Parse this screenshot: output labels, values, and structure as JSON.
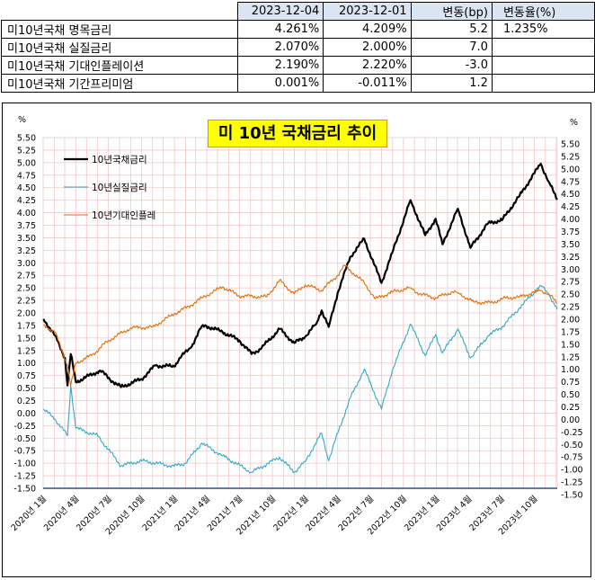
{
  "table": {
    "headers": [
      "2023-12-04",
      "2023-12-01",
      "변동(bp)",
      "변동율(%)"
    ],
    "rows": [
      {
        "label": "미10년국채 명목금리",
        "v1": "4.261%",
        "v2": "4.209%",
        "chg": "5.2",
        "pct": "1.235%"
      },
      {
        "label": "미10년국채 실질금리",
        "v1": "2.070%",
        "v2": "2.000%",
        "chg": "7.0",
        "pct": ""
      },
      {
        "label": "미10년국채 기대인플레이션",
        "v1": "2.190%",
        "v2": "2.220%",
        "chg": "-3.0",
        "pct": ""
      },
      {
        "label": "미10년국채 기간프리미엄",
        "v1": "0.001%",
        "v2": "-0.011%",
        "chg": "1.2",
        "pct": ""
      }
    ]
  },
  "chart_data": {
    "type": "line",
    "title": "미 10년 국채금리 추이",
    "y_unit_left": "%",
    "y_unit_right": "%",
    "ylim": [
      -1.5,
      5.5
    ],
    "ystep": 0.25,
    "y_tick_labels": [
      "-1.50",
      "-1.25",
      "-1.00",
      "-0.75",
      "-0.50",
      "-0.25",
      "0.00",
      "0.25",
      "0.50",
      "0.75",
      "1.00",
      "1.25",
      "1.50",
      "1.75",
      "2.00",
      "2.25",
      "2.50",
      "2.75",
      "3.00",
      "3.25",
      "3.50",
      "3.75",
      "4.00",
      "4.25",
      "4.50",
      "4.75",
      "5.00",
      "5.25",
      "5.50"
    ],
    "x_start": "2020-01-01",
    "x_end": "2023-12-04",
    "x_tick_labels": [
      "2020년 1월",
      "2020년 4월",
      "2020년 7월",
      "2020년 10월",
      "2021년 1월",
      "2021년 4월",
      "2021년 7월",
      "2021년 10월",
      "2022년 1월",
      "2022년 4월",
      "2022년 7월",
      "2022년 10월",
      "2023년 1월",
      "2023년 4월",
      "2023년 7월",
      "2023년 10월"
    ],
    "x_tick_dates": [
      "2020-01-01",
      "2020-04-01",
      "2020-07-01",
      "2020-10-01",
      "2021-01-01",
      "2021-04-01",
      "2021-07-01",
      "2021-10-01",
      "2022-01-01",
      "2022-04-01",
      "2022-07-01",
      "2022-10-01",
      "2023-01-01",
      "2023-04-01",
      "2023-07-01",
      "2023-10-01"
    ],
    "grid": true,
    "legend_position": "top-left",
    "series": [
      {
        "name": "10년국채금리",
        "color": "#000000",
        "width": 2.2,
        "points": [
          [
            "2020-01-02",
            1.88
          ],
          [
            "2020-02-03",
            1.55
          ],
          [
            "2020-03-02",
            1.1
          ],
          [
            "2020-03-09",
            0.55
          ],
          [
            "2020-03-18",
            1.18
          ],
          [
            "2020-04-01",
            0.62
          ],
          [
            "2020-06-08",
            0.85
          ],
          [
            "2020-07-15",
            0.62
          ],
          [
            "2020-08-05",
            0.52
          ],
          [
            "2020-10-01",
            0.68
          ],
          [
            "2020-11-09",
            0.95
          ],
          [
            "2020-12-31",
            0.93
          ],
          [
            "2021-01-15",
            1.1
          ],
          [
            "2021-02-15",
            1.3
          ],
          [
            "2021-03-18",
            1.73
          ],
          [
            "2021-03-31",
            1.74
          ],
          [
            "2021-05-15",
            1.62
          ],
          [
            "2021-07-01",
            1.45
          ],
          [
            "2021-08-04",
            1.18
          ],
          [
            "2021-09-01",
            1.3
          ],
          [
            "2021-10-21",
            1.68
          ],
          [
            "2021-12-01",
            1.4
          ],
          [
            "2021-12-31",
            1.52
          ],
          [
            "2022-01-31",
            1.78
          ],
          [
            "2022-02-15",
            2.05
          ],
          [
            "2022-03-07",
            1.72
          ],
          [
            "2022-04-01",
            2.4
          ],
          [
            "2022-05-06",
            3.12
          ],
          [
            "2022-06-14",
            3.48
          ],
          [
            "2022-08-01",
            2.6
          ],
          [
            "2022-08-31",
            3.2
          ],
          [
            "2022-10-21",
            4.25
          ],
          [
            "2022-12-01",
            3.55
          ],
          [
            "2022-12-30",
            3.88
          ],
          [
            "2023-01-18",
            3.37
          ],
          [
            "2023-03-02",
            4.08
          ],
          [
            "2023-04-06",
            3.3
          ],
          [
            "2023-05-26",
            3.8
          ],
          [
            "2023-07-03",
            3.85
          ],
          [
            "2023-08-21",
            4.34
          ],
          [
            "2023-10-19",
            4.98
          ],
          [
            "2023-11-10",
            4.62
          ],
          [
            "2023-12-04",
            4.26
          ]
        ]
      },
      {
        "name": "10년실질금리",
        "color": "#31a9c9",
        "width": 1.1,
        "points": [
          [
            "2020-01-02",
            0.08
          ],
          [
            "2020-02-03",
            -0.12
          ],
          [
            "2020-03-09",
            -0.45
          ],
          [
            "2020-03-18",
            0.55
          ],
          [
            "2020-04-01",
            -0.3
          ],
          [
            "2020-06-01",
            -0.45
          ],
          [
            "2020-08-05",
            -1.05
          ],
          [
            "2020-10-01",
            -0.95
          ],
          [
            "2020-12-31",
            -1.06
          ],
          [
            "2021-02-01",
            -1.0
          ],
          [
            "2021-03-18",
            -0.6
          ],
          [
            "2021-05-15",
            -0.85
          ],
          [
            "2021-08-04",
            -1.18
          ],
          [
            "2021-10-21",
            -0.88
          ],
          [
            "2021-12-01",
            -1.18
          ],
          [
            "2021-12-31",
            -0.97
          ],
          [
            "2022-02-15",
            -0.4
          ],
          [
            "2022-03-07",
            -0.95
          ],
          [
            "2022-04-01",
            -0.4
          ],
          [
            "2022-05-06",
            0.3
          ],
          [
            "2022-06-14",
            0.88
          ],
          [
            "2022-08-01",
            0.08
          ],
          [
            "2022-08-31",
            0.85
          ],
          [
            "2022-10-21",
            1.78
          ],
          [
            "2022-12-01",
            1.15
          ],
          [
            "2022-12-30",
            1.57
          ],
          [
            "2023-01-18",
            1.2
          ],
          [
            "2023-03-02",
            1.68
          ],
          [
            "2023-04-06",
            1.1
          ],
          [
            "2023-05-26",
            1.55
          ],
          [
            "2023-07-03",
            1.72
          ],
          [
            "2023-08-21",
            2.1
          ],
          [
            "2023-10-19",
            2.55
          ],
          [
            "2023-11-10",
            2.38
          ],
          [
            "2023-12-04",
            2.07
          ]
        ]
      },
      {
        "name": "10년기대인플레",
        "color": "#e46c0a",
        "width": 1.1,
        "points": [
          [
            "2020-01-02",
            1.75
          ],
          [
            "2020-02-03",
            1.62
          ],
          [
            "2020-03-09",
            0.95
          ],
          [
            "2020-03-18",
            0.55
          ],
          [
            "2020-04-01",
            1.0
          ],
          [
            "2020-05-15",
            1.15
          ],
          [
            "2020-07-01",
            1.45
          ],
          [
            "2020-09-01",
            1.7
          ],
          [
            "2020-11-01",
            1.72
          ],
          [
            "2020-12-31",
            1.98
          ],
          [
            "2021-02-15",
            2.15
          ],
          [
            "2021-03-18",
            2.3
          ],
          [
            "2021-05-15",
            2.52
          ],
          [
            "2021-07-01",
            2.34
          ],
          [
            "2021-09-15",
            2.32
          ],
          [
            "2021-10-21",
            2.65
          ],
          [
            "2021-12-01",
            2.38
          ],
          [
            "2021-12-31",
            2.56
          ],
          [
            "2022-02-15",
            2.45
          ],
          [
            "2022-04-01",
            2.75
          ],
          [
            "2022-04-20",
            2.95
          ],
          [
            "2022-06-14",
            2.6
          ],
          [
            "2022-07-15",
            2.28
          ],
          [
            "2022-08-31",
            2.42
          ],
          [
            "2022-10-21",
            2.5
          ],
          [
            "2022-11-15",
            2.38
          ],
          [
            "2022-12-30",
            2.3
          ],
          [
            "2023-02-15",
            2.42
          ],
          [
            "2023-03-02",
            2.4
          ],
          [
            "2023-04-15",
            2.22
          ],
          [
            "2023-06-01",
            2.2
          ],
          [
            "2023-07-15",
            2.3
          ],
          [
            "2023-08-21",
            2.32
          ],
          [
            "2023-10-19",
            2.45
          ],
          [
            "2023-11-10",
            2.38
          ],
          [
            "2023-12-04",
            2.19
          ]
        ]
      }
    ]
  }
}
